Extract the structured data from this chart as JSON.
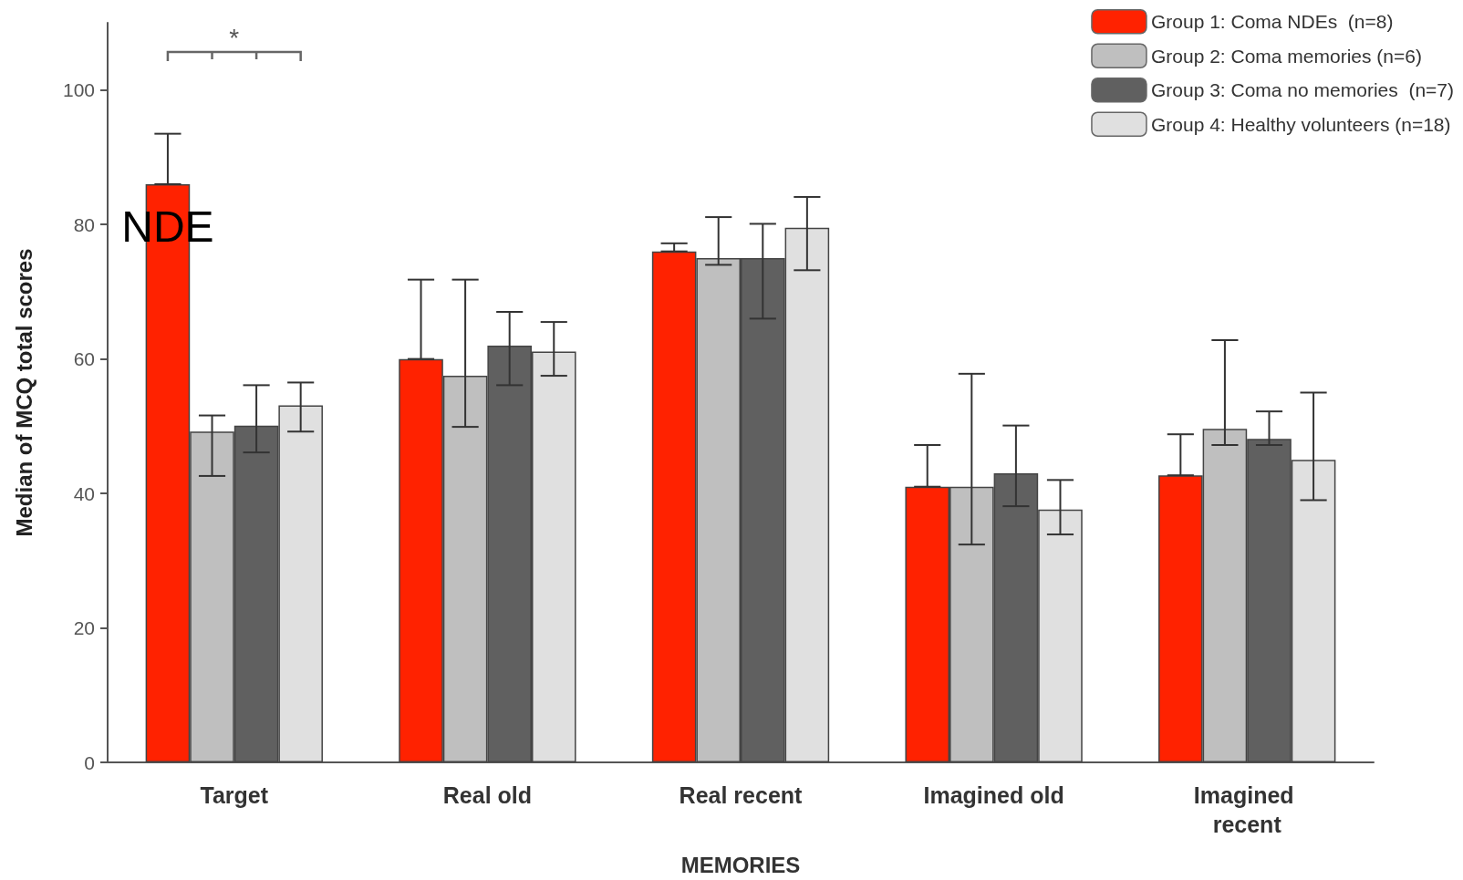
{
  "chart_data": {
    "type": "bar",
    "xlabel": "MEMORIES",
    "ylabel": "Median of MCQ total scores",
    "categories": [
      "Target",
      "Real old",
      "Real recent",
      "Imagined old",
      "Imagined recent"
    ],
    "series": [
      {
        "name": "Group 1: Coma NDEs  (n=8)",
        "color": "#ff2200",
        "values": [
          86,
          60,
          76,
          41,
          42.7
        ],
        "errors": [
          [
            86,
            93.5
          ],
          [
            60,
            71.8
          ],
          [
            76,
            77.2
          ],
          [
            41,
            47.2
          ],
          [
            42.7,
            48.8
          ]
        ]
      },
      {
        "name": "Group 2: Coma memories (n=6)",
        "color": "#bfbfbf",
        "values": [
          49.2,
          57.5,
          75,
          41,
          49.6
        ],
        "errors": [
          [
            42.6,
            51.6
          ],
          [
            49.9,
            71.8
          ],
          [
            74,
            81.1
          ],
          [
            32.4,
            57.8
          ],
          [
            47.2,
            62.8
          ]
        ]
      },
      {
        "name": "Group 3: Coma no memories  (n=7)",
        "color": "#606060",
        "values": [
          50.1,
          62,
          75,
          43,
          48.1
        ],
        "errors": [
          [
            46.1,
            56.1
          ],
          [
            56.1,
            67
          ],
          [
            66,
            80.1
          ],
          [
            38.1,
            50.1
          ],
          [
            47.2,
            52.2
          ]
        ]
      },
      {
        "name": "Group 4: Healthy volunteers (n=18)",
        "color": "#e0e0e0",
        "values": [
          53.1,
          61.1,
          79.5,
          37.6,
          45
        ],
        "errors": [
          [
            49.2,
            56.5
          ],
          [
            57.5,
            65.5
          ],
          [
            73.2,
            84.1
          ],
          [
            33.9,
            42
          ],
          [
            39,
            55
          ]
        ]
      }
    ],
    "ylim": [
      0,
      110
    ],
    "yticks": [
      0,
      20,
      40,
      60,
      80,
      100
    ],
    "grid": false,
    "legend": "top right",
    "annotations": [
      "*",
      "NDE"
    ]
  }
}
